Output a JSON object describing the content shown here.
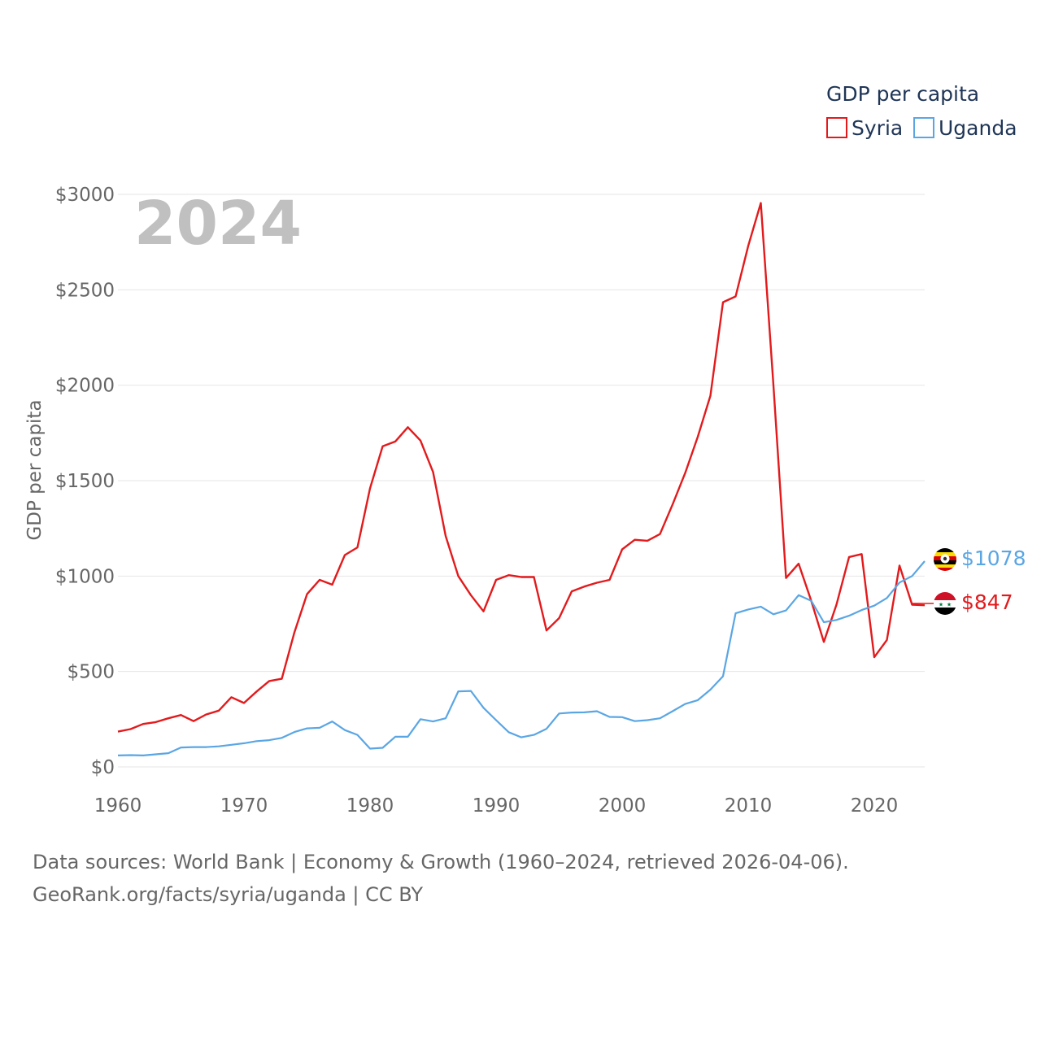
{
  "legend": {
    "title": "GDP per capita",
    "items": [
      {
        "name": "Syria",
        "color": "#e31a1c"
      },
      {
        "name": "Uganda",
        "color": "#5aa6e4"
      }
    ]
  },
  "watermark_year": "2024",
  "end_labels": {
    "uganda": "$1078",
    "syria": "$847"
  },
  "footer": {
    "line1": "Data sources: World Bank | Economy & Growth (1960–2024, retrieved 2026-04-06).",
    "line2": "GeoRank.org/facts/syria/uganda | CC BY"
  },
  "chart_data": {
    "type": "line",
    "title": "GDP per capita",
    "xlabel": "",
    "ylabel": "GDP per capita",
    "xlim": [
      1960,
      2024
    ],
    "ylim": [
      0,
      3000
    ],
    "x_ticks": [
      1960,
      1970,
      1980,
      1990,
      2000,
      2010,
      2020
    ],
    "x_tick_labels": [
      "1960",
      "1970",
      "1980",
      "1990",
      "2000",
      "2010",
      "2020"
    ],
    "y_ticks": [
      0,
      500,
      1000,
      1500,
      2000,
      2500,
      3000
    ],
    "y_tick_labels": [
      "$0",
      "$500",
      "$1000",
      "$1500",
      "$2000",
      "$2500",
      "$3000"
    ],
    "grid": true,
    "legend_position": "top-right",
    "x": [
      1960,
      1961,
      1962,
      1963,
      1964,
      1965,
      1966,
      1967,
      1968,
      1969,
      1970,
      1971,
      1972,
      1973,
      1974,
      1975,
      1976,
      1977,
      1978,
      1979,
      1980,
      1981,
      1982,
      1983,
      1984,
      1985,
      1986,
      1987,
      1988,
      1989,
      1990,
      1991,
      1992,
      1993,
      1994,
      1995,
      1996,
      1997,
      1998,
      1999,
      2000,
      2001,
      2002,
      2003,
      2004,
      2005,
      2006,
      2007,
      2008,
      2009,
      2010,
      2011,
      2012,
      2013,
      2014,
      2015,
      2016,
      2017,
      2018,
      2019,
      2020,
      2021,
      2022,
      2023,
      2024
    ],
    "series": [
      {
        "name": "Syria",
        "color": "#e31a1c",
        "values": [
          185,
          198,
          225,
          235,
          255,
          272,
          240,
          275,
          295,
          365,
          335,
          395,
          450,
          462,
          705,
          905,
          980,
          955,
          1110,
          1150,
          1460,
          1680,
          1705,
          1780,
          1710,
          1545,
          1210,
          1000,
          900,
          815,
          980,
          1005,
          995,
          995,
          715,
          780,
          920,
          945,
          965,
          980,
          1140,
          1190,
          1185,
          1220,
          1375,
          1540,
          1730,
          1945,
          2435,
          2465,
          2730,
          2955,
          2000,
          990,
          1065,
          870,
          655,
          850,
          1100,
          1115,
          575,
          665,
          1055,
          850,
          847
        ]
      },
      {
        "name": "Uganda",
        "color": "#5aa6e4",
        "values": [
          60,
          62,
          60,
          66,
          72,
          102,
          104,
          104,
          108,
          116,
          124,
          135,
          140,
          152,
          183,
          202,
          205,
          238,
          193,
          168,
          96,
          100,
          158,
          158,
          250,
          238,
          255,
          396,
          398,
          310,
          245,
          182,
          155,
          168,
          200,
          280,
          285,
          286,
          292,
          262,
          261,
          240,
          245,
          255,
          292,
          330,
          350,
          405,
          475,
          805,
          825,
          840,
          800,
          820,
          900,
          870,
          758,
          770,
          792,
          822,
          845,
          885,
          966,
          1000,
          1078
        ]
      }
    ]
  }
}
